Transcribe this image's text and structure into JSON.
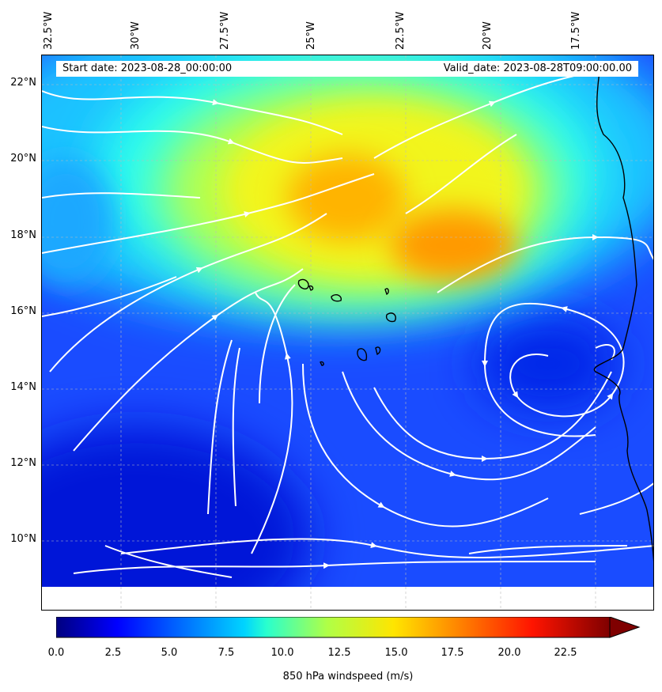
{
  "map": {
    "start_label": "Start date: 2023-08-28_00:00:00",
    "valid_label": "Valid_date: 2023-08-28T09:00:00.00",
    "lat_labels": [
      "22°N",
      "20°N",
      "18°N",
      "16°N",
      "14°N",
      "12°N",
      "10°N"
    ],
    "lon_labels": [
      "32.5°W",
      "30°W",
      "27.5°W",
      "25°W",
      "22.5°W",
      "20°W",
      "17.5°W"
    ],
    "variable": "850 hPa windspeed (m/s)"
  },
  "colorbar": {
    "label": "850 hPa windspeed (m/s)",
    "min": 0,
    "max": 25,
    "extend": "max",
    "ticks": [
      "0.0",
      "2.5",
      "5.0",
      "7.5",
      "10.0",
      "12.5",
      "15.0",
      "17.5",
      "20.0",
      "22.5"
    ]
  },
  "colors": {
    "colormap": "jet",
    "streamlines": "#ffffff",
    "coastline": "#000000"
  }
}
